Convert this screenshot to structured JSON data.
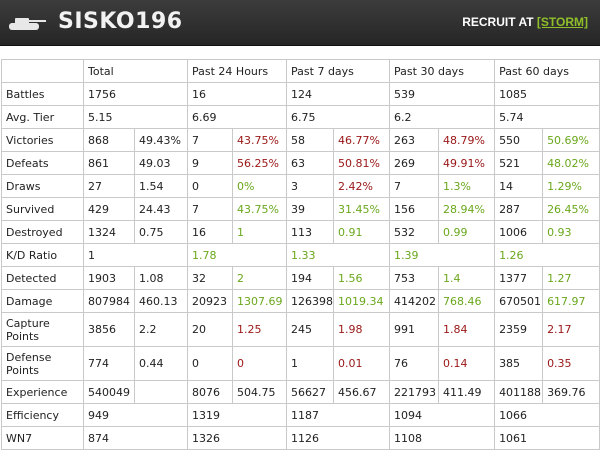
{
  "header": {
    "player_name": "SISKO196",
    "recruit_prefix": "RECRUIT AT ",
    "clan_tag": "[STORM]",
    "icon": "tank-icon"
  },
  "colors": {
    "positive": "#6aa81c",
    "negative": "#9a1616",
    "header_bg": "#2f2f2f"
  },
  "table": {
    "columns": [
      "Total",
      "Past 24 Hours",
      "Past 7 days",
      "Past 30 days",
      "Past 60 days"
    ],
    "rows": [
      {
        "label": "Battles",
        "cells": [
          {
            "v": "1756"
          },
          {
            "v": "16"
          },
          {
            "v": "124"
          },
          {
            "v": "539"
          },
          {
            "v": "1085"
          }
        ]
      },
      {
        "label": "Avg. Tier",
        "cells": [
          {
            "v": "5.15"
          },
          {
            "v": "6.69"
          },
          {
            "v": "6.75"
          },
          {
            "v": "6.2"
          },
          {
            "v": "5.74"
          }
        ]
      },
      {
        "label": "Victories",
        "cells": [
          {
            "v": "868",
            "p": "49.43%"
          },
          {
            "v": "7",
            "p": "43.75%",
            "c": "red"
          },
          {
            "v": "58",
            "p": "46.77%",
            "c": "red"
          },
          {
            "v": "263",
            "p": "48.79%",
            "c": "red"
          },
          {
            "v": "550",
            "p": "50.69%",
            "c": "green"
          }
        ]
      },
      {
        "label": "Defeats",
        "cells": [
          {
            "v": "861",
            "p": "49.03"
          },
          {
            "v": "9",
            "p": "56.25%",
            "c": "red"
          },
          {
            "v": "63",
            "p": "50.81%",
            "c": "red"
          },
          {
            "v": "269",
            "p": "49.91%",
            "c": "red"
          },
          {
            "v": "521",
            "p": "48.02%",
            "c": "green"
          }
        ]
      },
      {
        "label": "Draws",
        "cells": [
          {
            "v": "27",
            "p": "1.54"
          },
          {
            "v": "0",
            "p": "0%",
            "c": "green"
          },
          {
            "v": "3",
            "p": "2.42%",
            "c": "red"
          },
          {
            "v": "7",
            "p": "1.3%",
            "c": "green"
          },
          {
            "v": "14",
            "p": "1.29%",
            "c": "green"
          }
        ]
      },
      {
        "label": "Survived",
        "cells": [
          {
            "v": "429",
            "p": "24.43"
          },
          {
            "v": "7",
            "p": "43.75%",
            "c": "green"
          },
          {
            "v": "39",
            "p": "31.45%",
            "c": "green"
          },
          {
            "v": "156",
            "p": "28.94%",
            "c": "green"
          },
          {
            "v": "287",
            "p": "26.45%",
            "c": "green"
          }
        ]
      },
      {
        "label": "Destroyed",
        "cells": [
          {
            "v": "1324",
            "p": "0.75"
          },
          {
            "v": "16",
            "p": "1",
            "c": "green"
          },
          {
            "v": "113",
            "p": "0.91",
            "c": "green"
          },
          {
            "v": "532",
            "p": "0.99",
            "c": "green"
          },
          {
            "v": "1006",
            "p": "0.93",
            "c": "green"
          }
        ]
      },
      {
        "label": "K/D Ratio",
        "cells": [
          {
            "v": "1"
          },
          {
            "v": "1.78",
            "c": "green"
          },
          {
            "v": "1.33",
            "c": "green"
          },
          {
            "v": "1.39",
            "c": "green"
          },
          {
            "v": "1.26",
            "c": "green"
          }
        ]
      },
      {
        "label": "Detected",
        "cells": [
          {
            "v": "1903",
            "p": "1.08"
          },
          {
            "v": "32",
            "p": "2",
            "c": "green"
          },
          {
            "v": "194",
            "p": "1.56",
            "c": "green"
          },
          {
            "v": "753",
            "p": "1.4",
            "c": "green"
          },
          {
            "v": "1377",
            "p": "1.27",
            "c": "green"
          }
        ]
      },
      {
        "label": "Damage",
        "cells": [
          {
            "v": "807984",
            "p": "460.13"
          },
          {
            "v": "20923",
            "p": "1307.69",
            "c": "green"
          },
          {
            "v": "126398",
            "p": "1019.34",
            "c": "green"
          },
          {
            "v": "414202",
            "p": "768.46",
            "c": "green"
          },
          {
            "v": "670501",
            "p": "617.97",
            "c": "green"
          }
        ]
      },
      {
        "label": "Capture Points",
        "tall": true,
        "cells": [
          {
            "v": "3856",
            "p": "2.2"
          },
          {
            "v": "20",
            "p": "1.25",
            "c": "red"
          },
          {
            "v": "245",
            "p": "1.98",
            "c": "red"
          },
          {
            "v": "991",
            "p": "1.84",
            "c": "red"
          },
          {
            "v": "2359",
            "p": "2.17",
            "c": "red"
          }
        ]
      },
      {
        "label": "Defense Points",
        "tall": true,
        "cells": [
          {
            "v": "774",
            "p": "0.44"
          },
          {
            "v": "0",
            "p": "0",
            "c": "red"
          },
          {
            "v": "1",
            "p": "0.01",
            "c": "red"
          },
          {
            "v": "76",
            "p": "0.14",
            "c": "red"
          },
          {
            "v": "385",
            "p": "0.35",
            "c": "red"
          }
        ]
      },
      {
        "label": "Experience",
        "cells": [
          {
            "v": "540049",
            "p": ""
          },
          {
            "v": "8076",
            "p": "504.75"
          },
          {
            "v": "56627",
            "p": "456.67"
          },
          {
            "v": "221793",
            "p": "411.49"
          },
          {
            "v": "401188",
            "p": "369.76"
          }
        ]
      },
      {
        "label": "Efficiency",
        "cells": [
          {
            "v": "949"
          },
          {
            "v": "1319"
          },
          {
            "v": "1187"
          },
          {
            "v": "1094"
          },
          {
            "v": "1066"
          }
        ]
      },
      {
        "label": "WN7",
        "cells": [
          {
            "v": "874"
          },
          {
            "v": "1326"
          },
          {
            "v": "1126"
          },
          {
            "v": "1108"
          },
          {
            "v": "1061"
          }
        ]
      }
    ]
  }
}
